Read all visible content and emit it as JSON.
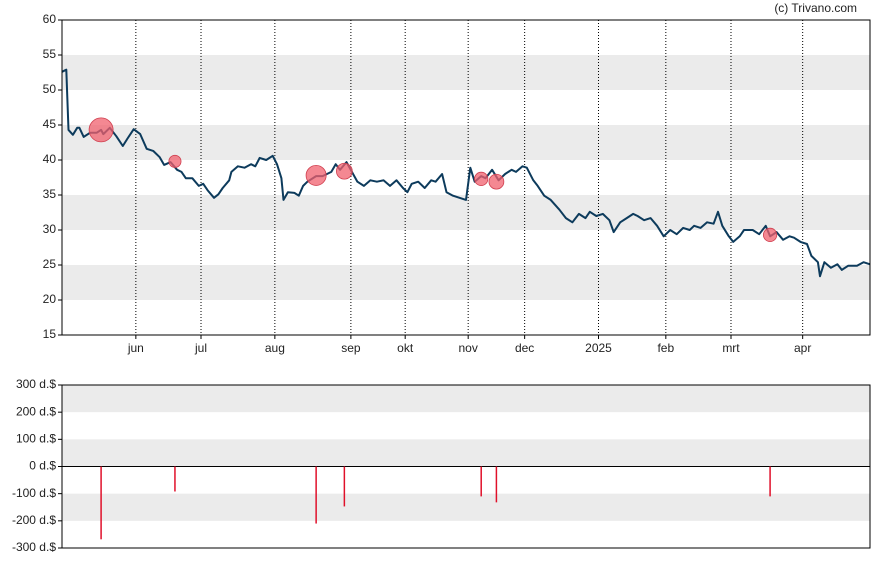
{
  "chart_data": [
    {
      "type": "line",
      "source": "(c) Trivano.com",
      "grid": "bands",
      "ylim": [
        15,
        60
      ],
      "yticks": [
        15,
        20,
        25,
        30,
        35,
        40,
        45,
        50,
        55,
        60
      ],
      "xlim": [
        0,
        372
      ],
      "xticks": [
        {
          "value": 34,
          "label": "jun"
        },
        {
          "value": 64,
          "label": "jul"
        },
        {
          "value": 98,
          "label": "aug"
        },
        {
          "value": 133,
          "label": "sep"
        },
        {
          "value": 158,
          "label": "okt"
        },
        {
          "value": 187,
          "label": "nov"
        },
        {
          "value": 213,
          "label": "dec"
        },
        {
          "value": 247,
          "label": "2025"
        },
        {
          "value": 278,
          "label": "feb"
        },
        {
          "value": 308,
          "label": "mrt"
        },
        {
          "value": 341,
          "label": "apr"
        }
      ],
      "series": [
        {
          "type": "line",
          "color": "#0d3b5c",
          "x": [
            0,
            2,
            3,
            5,
            7,
            8,
            10,
            13,
            16,
            18,
            19,
            22,
            25,
            28,
            30,
            33,
            36,
            39,
            42,
            45,
            47,
            50,
            53,
            55,
            57,
            60,
            63,
            65,
            67,
            70,
            72,
            74,
            77,
            78,
            81,
            84,
            87,
            89,
            91,
            94,
            97,
            99,
            101,
            102,
            104,
            107,
            109,
            111,
            113,
            117,
            120,
            124,
            126,
            128,
            131,
            134,
            136,
            139,
            142,
            145,
            148,
            151,
            154,
            157,
            159,
            161,
            164,
            167,
            170,
            172,
            175,
            177,
            180,
            183,
            186,
            188,
            190,
            193,
            195,
            198,
            201,
            204,
            207,
            209,
            212,
            214,
            217,
            219,
            222,
            225,
            229,
            232,
            235,
            238,
            241,
            243,
            246,
            249,
            252,
            254,
            257,
            260,
            263,
            265,
            268,
            271,
            274,
            277,
            280,
            283,
            286,
            289,
            291,
            294,
            297,
            300,
            302,
            304,
            307,
            309,
            312,
            314,
            318,
            321,
            324,
            326,
            329,
            332,
            335,
            337,
            340,
            343,
            345,
            348,
            349,
            351,
            354,
            357,
            359,
            362,
            366,
            369,
            372
          ],
          "values": [
            52.6,
            52.9,
            44.3,
            43.6,
            44.6,
            44.6,
            43.3,
            43.9,
            43.9,
            44.3,
            43.7,
            44.6,
            43.4,
            42.0,
            43.0,
            44.4,
            43.7,
            41.6,
            41.3,
            40.4,
            39.3,
            39.7,
            38.6,
            38.3,
            37.4,
            37.4,
            36.3,
            36.6,
            35.7,
            34.6,
            35.1,
            36.0,
            37.1,
            38.3,
            39.1,
            38.9,
            39.4,
            39.1,
            40.3,
            40.0,
            40.6,
            39.4,
            37.4,
            34.3,
            35.4,
            35.3,
            34.9,
            36.3,
            36.9,
            37.7,
            37.7,
            38.3,
            39.4,
            38.6,
            39.7,
            38.0,
            36.9,
            36.3,
            37.1,
            36.9,
            37.1,
            36.3,
            37.1,
            36.0,
            35.4,
            36.6,
            36.9,
            36.0,
            37.1,
            36.9,
            38.0,
            35.4,
            34.9,
            34.6,
            34.3,
            38.9,
            36.9,
            37.7,
            37.4,
            38.6,
            37.1,
            38.0,
            38.6,
            38.3,
            39.1,
            38.9,
            37.1,
            36.3,
            34.9,
            34.3,
            32.9,
            31.7,
            31.1,
            32.3,
            31.7,
            32.6,
            32.0,
            32.3,
            31.4,
            29.7,
            31.1,
            31.7,
            32.3,
            32.0,
            31.4,
            31.7,
            30.6,
            29.1,
            30.0,
            29.4,
            30.3,
            30.0,
            30.6,
            30.3,
            31.1,
            30.9,
            32.6,
            30.6,
            29.1,
            28.3,
            29.1,
            30.0,
            30.0,
            29.4,
            30.6,
            29.1,
            29.7,
            28.6,
            29.1,
            28.9,
            28.3,
            28.0,
            26.3,
            25.4,
            23.4,
            25.4,
            24.6,
            25.1,
            24.3,
            24.9,
            24.9,
            25.4,
            25.1
          ]
        },
        {
          "type": "bubble",
          "color": "#f0606e",
          "x": [
            18,
            52,
            117,
            130,
            193,
            200,
            326
          ],
          "values": [
            44.3,
            39.8,
            37.8,
            38.4,
            37.3,
            36.9,
            29.3
          ]
        }
      ]
    },
    {
      "type": "bar",
      "color": "#e0102a",
      "grid": "bands",
      "ylim": [
        -300,
        300
      ],
      "yticks": [
        {
          "value": -300,
          "label": "-300 d.$"
        },
        {
          "value": -200,
          "label": "-200 d.$"
        },
        {
          "value": -100,
          "label": "-100 d.$"
        },
        {
          "value": 0,
          "label": "0 d.$"
        },
        {
          "value": 100,
          "label": "100 d.$"
        },
        {
          "value": 200,
          "label": "200 d.$"
        },
        {
          "value": 300,
          "label": "300 d.$"
        }
      ],
      "xlim": [
        0,
        372
      ],
      "x": [
        18,
        52,
        117,
        130,
        193,
        200,
        326
      ],
      "values": [
        -268,
        -92,
        -210,
        -147,
        -110,
        -132,
        -110
      ]
    }
  ]
}
